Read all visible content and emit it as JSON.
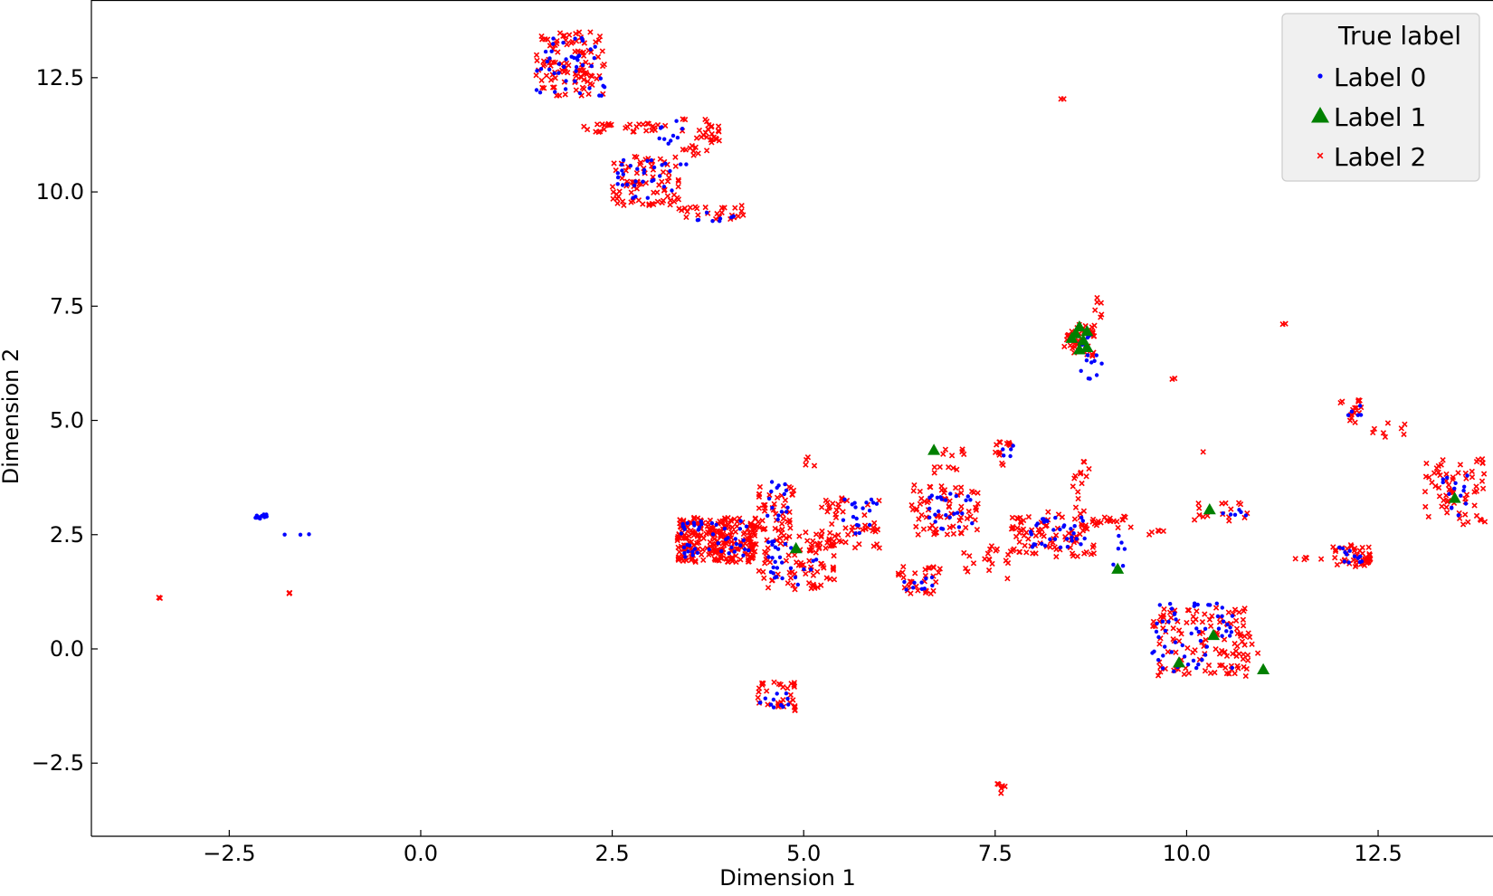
{
  "chart_data": {
    "type": "scatter",
    "xlabel": "Dimension 1",
    "ylabel": "Dimension 2",
    "xlim": [
      -4.3,
      14.0
    ],
    "ylim": [
      -4.1,
      14.2
    ],
    "xticks": [
      -2.5,
      0.0,
      2.5,
      5.0,
      7.5,
      10.0,
      12.5
    ],
    "xtick_labels": [
      "−2.5",
      "0.0",
      "2.5",
      "5.0",
      "7.5",
      "10.0",
      "12.5"
    ],
    "yticks": [
      -2.5,
      0.0,
      2.5,
      5.0,
      7.5,
      10.0,
      12.5
    ],
    "ytick_labels": [
      "−2.5",
      "0.0",
      "2.5",
      "5.0",
      "7.5",
      "10.0",
      "12.5"
    ],
    "grid": false,
    "legend": {
      "title": "True label",
      "placement": "top-right",
      "entries": [
        "Label 0",
        "Label 1",
        "Label 2"
      ]
    },
    "colors": {
      "Label 0": "#0000ff",
      "Label 1": "#008000",
      "Label 2": "#ff0000"
    },
    "markers": {
      "Label 0": "dot",
      "Label 1": "triangle",
      "Label 2": "x"
    },
    "clusters": [
      {
        "label": 2,
        "x": [
          1.5,
          2.4
        ],
        "y": [
          12.1,
          13.5
        ],
        "n": 110
      },
      {
        "label": 0,
        "x": [
          1.5,
          2.4
        ],
        "y": [
          12.1,
          13.4
        ],
        "n": 45
      },
      {
        "label": 2,
        "x": [
          2.1,
          3.3
        ],
        "y": [
          11.3,
          11.5
        ],
        "n": 30
      },
      {
        "label": 2,
        "x": [
          3.4,
          3.9
        ],
        "y": [
          10.8,
          11.6
        ],
        "n": 35
      },
      {
        "label": 0,
        "x": [
          3.1,
          3.6
        ],
        "y": [
          10.6,
          11.7
        ],
        "n": 12
      },
      {
        "label": 2,
        "x": [
          2.5,
          3.4
        ],
        "y": [
          9.7,
          10.8
        ],
        "n": 80
      },
      {
        "label": 0,
        "x": [
          2.5,
          3.3
        ],
        "y": [
          9.8,
          10.7
        ],
        "n": 30
      },
      {
        "label": 2,
        "x": [
          3.3,
          4.3
        ],
        "y": [
          9.4,
          9.7
        ],
        "n": 25
      },
      {
        "label": 0,
        "x": [
          3.5,
          4.1
        ],
        "y": [
          9.35,
          9.6
        ],
        "n": 8
      },
      {
        "label": 2,
        "x": [
          8.35,
          8.4
        ],
        "y": [
          12.0,
          12.1
        ],
        "n": 2
      },
      {
        "label": 2,
        "x": [
          8.4,
          8.8
        ],
        "y": [
          6.4,
          7.1
        ],
        "n": 45
      },
      {
        "label": 0,
        "x": [
          8.5,
          8.9
        ],
        "y": [
          5.9,
          6.9
        ],
        "n": 18
      },
      {
        "label": 2,
        "x": [
          8.75,
          8.9
        ],
        "y": [
          7.2,
          7.7
        ],
        "n": 6
      },
      {
        "label": 2,
        "x": [
          9.8,
          9.85
        ],
        "y": [
          5.9,
          5.95
        ],
        "n": 2
      },
      {
        "label": 2,
        "x": [
          11.25,
          11.3
        ],
        "y": [
          7.1,
          7.15
        ],
        "n": 2
      },
      {
        "label": 0,
        "x": [
          -2.2,
          -2.0
        ],
        "y": [
          2.85,
          2.95
        ],
        "n": 12
      },
      {
        "label": 0,
        "x": [
          -1.85,
          -1.15
        ],
        "y": [
          2.4,
          2.55
        ],
        "n": 3
      },
      {
        "label": 2,
        "x": [
          -1.75,
          -1.7
        ],
        "y": [
          1.2,
          1.25
        ],
        "n": 3
      },
      {
        "label": 2,
        "x": [
          -3.45,
          -3.4
        ],
        "y": [
          1.1,
          1.15
        ],
        "n": 2
      },
      {
        "label": 2,
        "x": [
          3.35,
          4.4
        ],
        "y": [
          1.9,
          2.9
        ],
        "n": 260
      },
      {
        "label": 0,
        "x": [
          3.4,
          4.3
        ],
        "y": [
          2.0,
          2.8
        ],
        "n": 45
      },
      {
        "label": 2,
        "x": [
          4.4,
          4.9
        ],
        "y": [
          2.6,
          3.6
        ],
        "n": 40
      },
      {
        "label": 0,
        "x": [
          4.5,
          4.8
        ],
        "y": [
          2.8,
          3.7
        ],
        "n": 15
      },
      {
        "label": 2,
        "x": [
          4.4,
          5.4
        ],
        "y": [
          1.3,
          2.6
        ],
        "n": 90
      },
      {
        "label": 0,
        "x": [
          4.5,
          5.2
        ],
        "y": [
          1.4,
          2.4
        ],
        "n": 28
      },
      {
        "label": 2,
        "x": [
          5.2,
          6.0
        ],
        "y": [
          2.2,
          3.4
        ],
        "n": 55
      },
      {
        "label": 0,
        "x": [
          5.4,
          6.1
        ],
        "y": [
          2.5,
          3.3
        ],
        "n": 18
      },
      {
        "label": 2,
        "x": [
          5.0,
          5.2
        ],
        "y": [
          4.0,
          4.2
        ],
        "n": 4
      },
      {
        "label": 2,
        "x": [
          6.2,
          6.8
        ],
        "y": [
          1.2,
          1.8
        ],
        "n": 30
      },
      {
        "label": 0,
        "x": [
          6.3,
          6.7
        ],
        "y": [
          1.25,
          1.6
        ],
        "n": 10
      },
      {
        "label": 2,
        "x": [
          6.4,
          7.3
        ],
        "y": [
          2.5,
          3.6
        ],
        "n": 70
      },
      {
        "label": 0,
        "x": [
          6.6,
          7.2
        ],
        "y": [
          2.6,
          3.4
        ],
        "n": 25
      },
      {
        "label": 2,
        "x": [
          6.7,
          7.1
        ],
        "y": [
          3.8,
          4.4
        ],
        "n": 12
      },
      {
        "label": 2,
        "x": [
          7.0,
          7.8
        ],
        "y": [
          1.5,
          2.3
        ],
        "n": 20
      },
      {
        "label": 2,
        "x": [
          7.5,
          7.7
        ],
        "y": [
          4.0,
          4.6
        ],
        "n": 14
      },
      {
        "label": 0,
        "x": [
          7.6,
          7.8
        ],
        "y": [
          4.1,
          4.5
        ],
        "n": 5
      },
      {
        "label": 2,
        "x": [
          7.7,
          8.8
        ],
        "y": [
          2.0,
          3.0
        ],
        "n": 90
      },
      {
        "label": 0,
        "x": [
          7.9,
          8.7
        ],
        "y": [
          2.2,
          2.9
        ],
        "n": 35
      },
      {
        "label": 2,
        "x": [
          8.5,
          8.8
        ],
        "y": [
          3.0,
          4.1
        ],
        "n": 14
      },
      {
        "label": 2,
        "x": [
          8.8,
          9.3
        ],
        "y": [
          2.6,
          2.9
        ],
        "n": 18
      },
      {
        "label": 0,
        "x": [
          9.0,
          9.2
        ],
        "y": [
          1.6,
          2.5
        ],
        "n": 8
      },
      {
        "label": 2,
        "x": [
          9.5,
          9.7
        ],
        "y": [
          2.5,
          2.6
        ],
        "n": 5
      },
      {
        "label": 2,
        "x": [
          10.1,
          10.9
        ],
        "y": [
          2.8,
          3.2
        ],
        "n": 16
      },
      {
        "label": 0,
        "x": [
          10.4,
          10.8
        ],
        "y": [
          2.9,
          3.1
        ],
        "n": 6
      },
      {
        "label": 2,
        "x": [
          10.2,
          10.25
        ],
        "y": [
          4.3,
          4.35
        ],
        "n": 1
      },
      {
        "label": 2,
        "x": [
          9.55,
          10.8
        ],
        "y": [
          -0.6,
          0.9
        ],
        "n": 110
      },
      {
        "label": 0,
        "x": [
          9.55,
          10.6
        ],
        "y": [
          -0.5,
          1.0
        ],
        "n": 55
      },
      {
        "label": 2,
        "x": [
          10.6,
          11.0
        ],
        "y": [
          -0.45,
          0.35
        ],
        "n": 12
      },
      {
        "label": 2,
        "x": [
          11.3,
          11.8
        ],
        "y": [
          1.95,
          2.0
        ],
        "n": 5
      },
      {
        "label": 2,
        "x": [
          11.9,
          12.4
        ],
        "y": [
          1.8,
          2.3
        ],
        "n": 45
      },
      {
        "label": 0,
        "x": [
          11.95,
          12.3
        ],
        "y": [
          1.85,
          2.25
        ],
        "n": 12
      },
      {
        "label": 2,
        "x": [
          12.0,
          12.3
        ],
        "y": [
          4.9,
          5.5
        ],
        "n": 16
      },
      {
        "label": 0,
        "x": [
          12.1,
          12.3
        ],
        "y": [
          5.1,
          5.4
        ],
        "n": 5
      },
      {
        "label": 2,
        "x": [
          12.4,
          12.9
        ],
        "y": [
          4.6,
          4.95
        ],
        "n": 8
      },
      {
        "label": 2,
        "x": [
          13.1,
          13.9
        ],
        "y": [
          2.7,
          4.2
        ],
        "n": 65
      },
      {
        "label": 0,
        "x": [
          13.3,
          13.7
        ],
        "y": [
          2.9,
          3.8
        ],
        "n": 15
      },
      {
        "label": 2,
        "x": [
          4.4,
          4.9
        ],
        "y": [
          -1.35,
          -0.7
        ],
        "n": 32
      },
      {
        "label": 0,
        "x": [
          4.4,
          4.8
        ],
        "y": [
          -1.3,
          -0.9
        ],
        "n": 12
      },
      {
        "label": 2,
        "x": [
          7.5,
          7.65
        ],
        "y": [
          -3.2,
          -2.95
        ],
        "n": 6
      }
    ],
    "label_1_points": {
      "x": [
        8.55,
        8.6,
        8.65,
        8.7,
        8.6,
        8.7,
        8.5,
        4.9,
        6.7,
        9.1,
        10.3,
        13.5,
        9.9,
        10.35,
        11.0
      ],
      "y": [
        6.9,
        7.05,
        6.75,
        6.6,
        6.55,
        6.95,
        6.8,
        2.2,
        4.35,
        1.75,
        3.05,
        3.3,
        -0.3,
        0.3,
        -0.45
      ]
    }
  }
}
